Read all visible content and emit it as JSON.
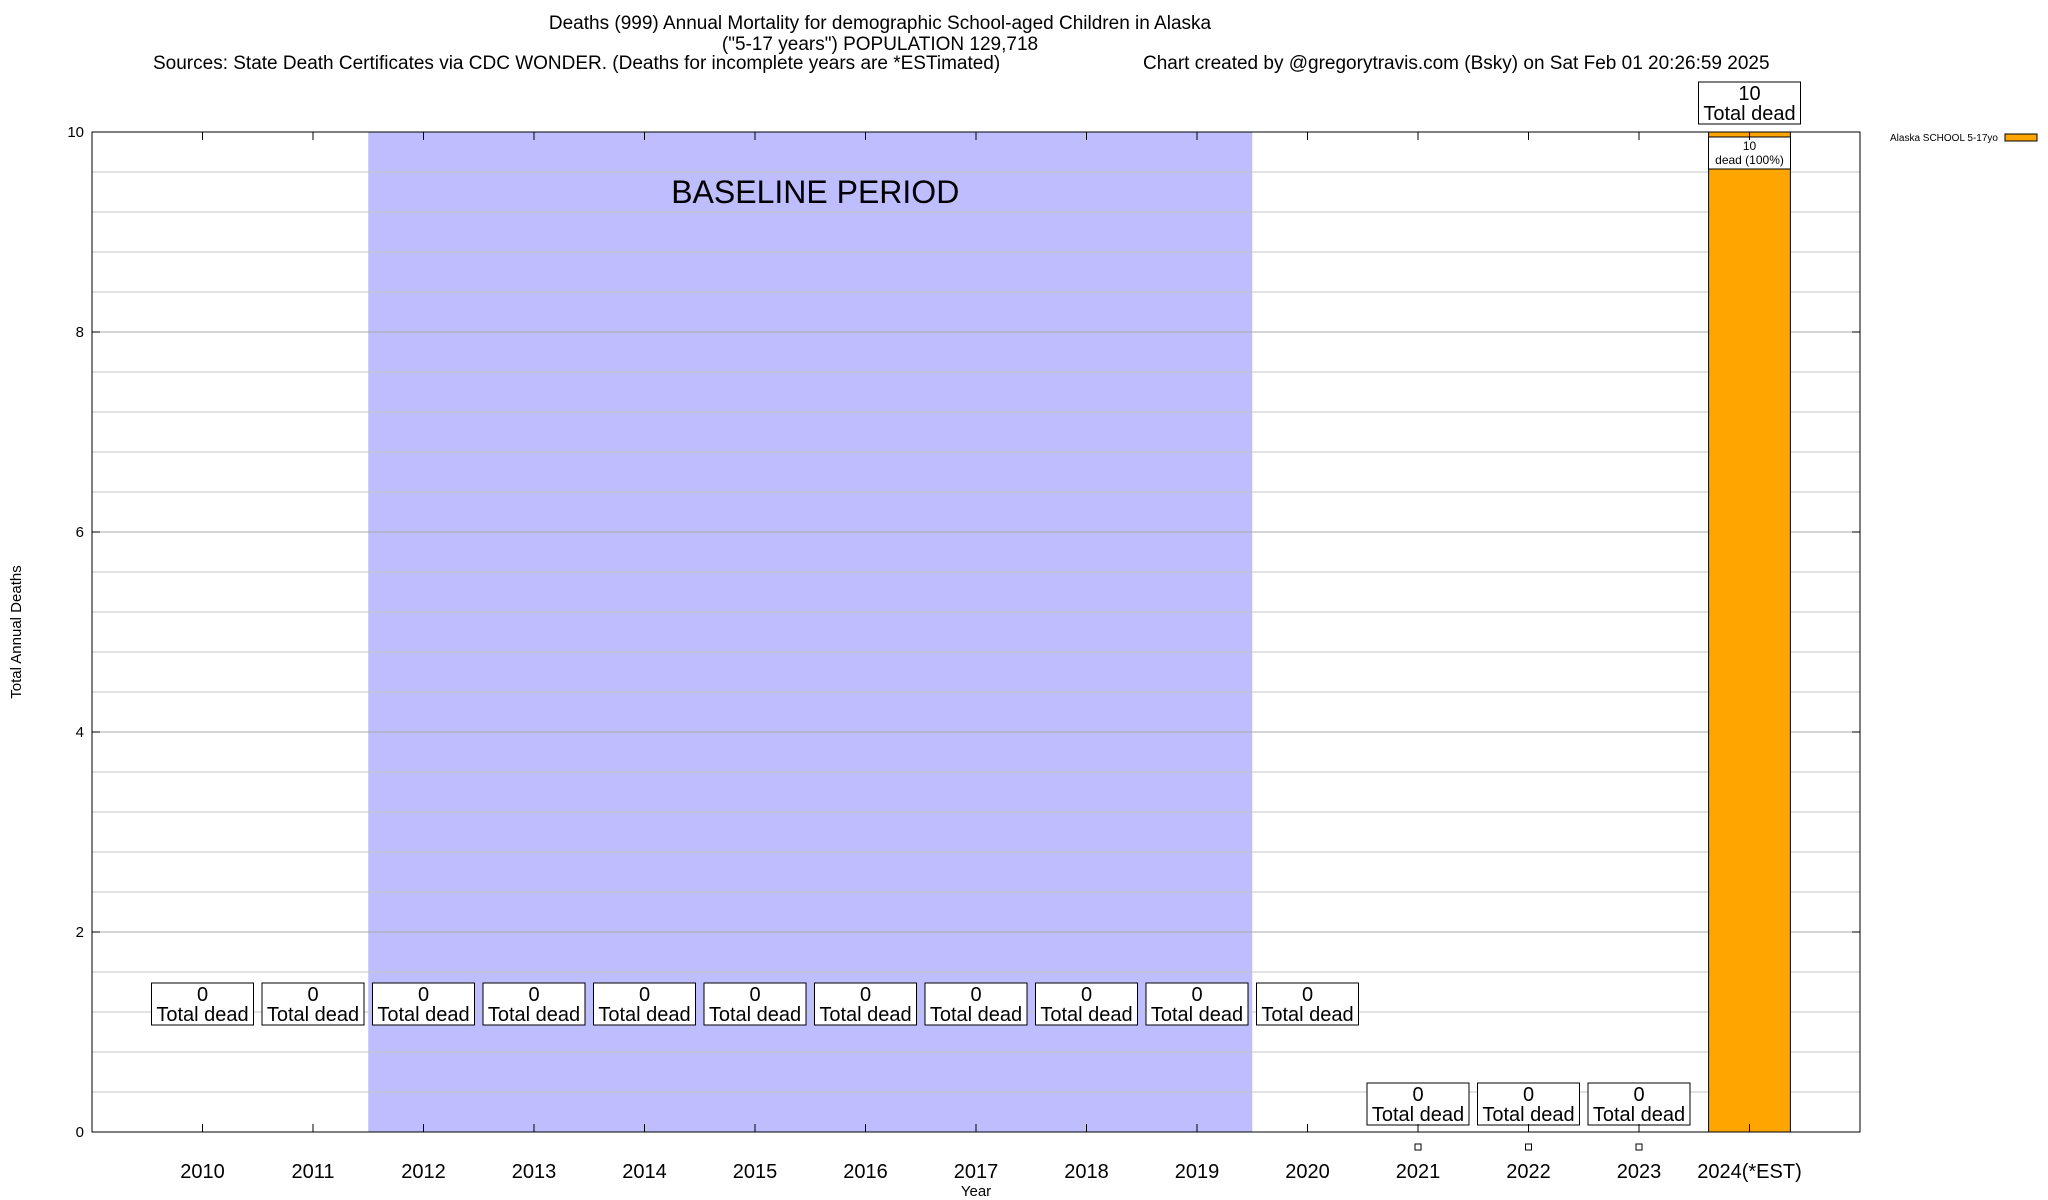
{
  "header": {
    "line1": "Deaths (999) Annual Mortality for demographic School-aged Children in Alaska",
    "line2": "(\"5-17 years\") POPULATION 129,718",
    "sources": "Sources: State Death Certificates via CDC WONDER. (Deaths for incomplete years are *ESTimated)",
    "credit": "Chart created by @gregorytravis.com (Bsky) on Sat Feb 01 20:26:59 2025"
  },
  "chart_data": {
    "type": "bar",
    "xlabel": "Year",
    "ylabel": "Total Annual Deaths",
    "ylim": [
      0,
      10
    ],
    "yticks": [
      "0",
      "2",
      "4",
      "6",
      "8",
      "10"
    ],
    "categories": [
      "2010",
      "2011",
      "2012",
      "2013",
      "2014",
      "2015",
      "2016",
      "2017",
      "2018",
      "2019",
      "2020",
      "2021",
      "2022",
      "2023",
      "2024(*EST)"
    ],
    "series": [
      {
        "name": "Alaska SCHOOL 5-17yo",
        "color": "#ffa500",
        "values": [
          0,
          0,
          0,
          0,
          0,
          0,
          0,
          0,
          0,
          0,
          0,
          0,
          0,
          0,
          10
        ]
      }
    ],
    "total_labels": [
      {
        "count": "0",
        "text": "Total dead"
      },
      {
        "count": "0",
        "text": "Total dead"
      },
      {
        "count": "0",
        "text": "Total dead"
      },
      {
        "count": "0",
        "text": "Total dead"
      },
      {
        "count": "0",
        "text": "Total dead"
      },
      {
        "count": "0",
        "text": "Total dead"
      },
      {
        "count": "0",
        "text": "Total dead"
      },
      {
        "count": "0",
        "text": "Total dead"
      },
      {
        "count": "0",
        "text": "Total dead"
      },
      {
        "count": "0",
        "text": "Total dead"
      },
      {
        "count": "0",
        "text": "Total dead"
      },
      {
        "count": "0",
        "text": "Total dead"
      },
      {
        "count": "0",
        "text": "Total dead"
      },
      {
        "count": "0",
        "text": "Total dead"
      },
      {
        "count": "10",
        "text": "Total dead"
      }
    ],
    "segment_label": {
      "category": "2024(*EST)",
      "line1": "10",
      "line2": "dead (100%)"
    },
    "baseline": {
      "label": "BASELINE PERIOD",
      "from": "2012",
      "to": "2019",
      "color": "#bebefe"
    },
    "legend": {
      "position": "top-right",
      "entry": "Alaska SCHOOL 5-17yo"
    },
    "grid": true
  }
}
